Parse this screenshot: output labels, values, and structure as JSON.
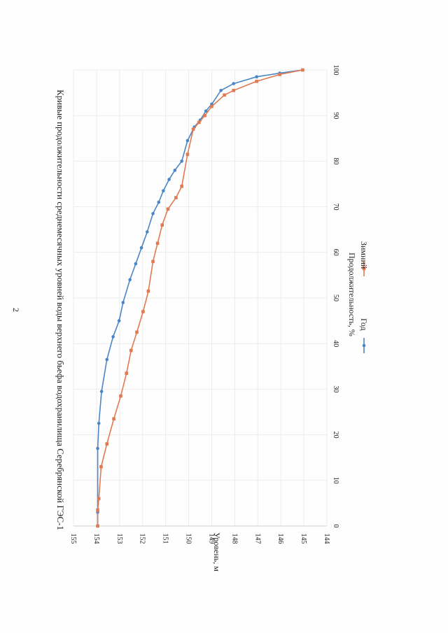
{
  "page": {
    "number": "2"
  },
  "chart_data": {
    "type": "line",
    "title": "Кривые продолжительности среднемесячных уровней воды верхнего бьефа водохранилища Серебрянской ГЭС-1",
    "xlabel": "Продолжительность, %",
    "ylabel": "Уровень, м",
    "xlim": [
      0,
      100
    ],
    "ylim": [
      144,
      155
    ],
    "x_ticks": [
      "0",
      "10",
      "20",
      "30",
      "40",
      "50",
      "60",
      "70",
      "80",
      "90",
      "100"
    ],
    "y_ticks": [
      "155",
      "154",
      "153",
      "152",
      "151",
      "150",
      "149",
      "148",
      "147",
      "146",
      "145",
      "144"
    ],
    "y_reversed": true,
    "grid": true,
    "legend_position": "bottom",
    "series": [
      {
        "name": "Год",
        "color": "#4a86c6",
        "points": [
          [
            0,
            153.95
          ],
          [
            3,
            153.95
          ],
          [
            17,
            153.95
          ],
          [
            22.5,
            153.9
          ],
          [
            29.5,
            153.78
          ],
          [
            36.5,
            153.55
          ],
          [
            41.5,
            153.28
          ],
          [
            45,
            153.02
          ],
          [
            49,
            152.85
          ],
          [
            54,
            152.55
          ],
          [
            57.5,
            152.3
          ],
          [
            61,
            152.05
          ],
          [
            64.5,
            151.8
          ],
          [
            68.5,
            151.55
          ],
          [
            71,
            151.3
          ],
          [
            73.5,
            151.1
          ],
          [
            76,
            150.85
          ],
          [
            78,
            150.6
          ],
          [
            80,
            150.3
          ],
          [
            84.5,
            150.05
          ],
          [
            87.5,
            149.75
          ],
          [
            89,
            149.5
          ],
          [
            91,
            149.25
          ],
          [
            92.5,
            149.0
          ],
          [
            95.5,
            148.6
          ],
          [
            97,
            148.05
          ],
          [
            98.5,
            147.05
          ],
          [
            99.3,
            146.05
          ],
          [
            100,
            145.05
          ]
        ]
      },
      {
        "name": "Зимний",
        "color": "#e07a52",
        "points": [
          [
            0,
            153.95
          ],
          [
            3.5,
            153.95
          ],
          [
            6,
            153.9
          ],
          [
            13,
            153.8
          ],
          [
            18,
            153.55
          ],
          [
            23.5,
            153.25
          ],
          [
            28.5,
            152.95
          ],
          [
            33.5,
            152.7
          ],
          [
            38.5,
            152.5
          ],
          [
            42.5,
            152.25
          ],
          [
            47,
            151.98
          ],
          [
            51.5,
            151.75
          ],
          [
            58,
            151.55
          ],
          [
            62,
            151.35
          ],
          [
            66,
            151.15
          ],
          [
            69.5,
            150.9
          ],
          [
            72,
            150.55
          ],
          [
            74.5,
            150.3
          ],
          [
            81.5,
            150.05
          ],
          [
            87,
            149.8
          ],
          [
            88.5,
            149.55
          ],
          [
            90,
            149.3
          ],
          [
            92,
            149.0
          ],
          [
            94.5,
            148.45
          ],
          [
            95.5,
            148.05
          ],
          [
            97.5,
            147.05
          ],
          [
            99,
            146.05
          ],
          [
            100,
            145.05
          ]
        ]
      }
    ]
  }
}
